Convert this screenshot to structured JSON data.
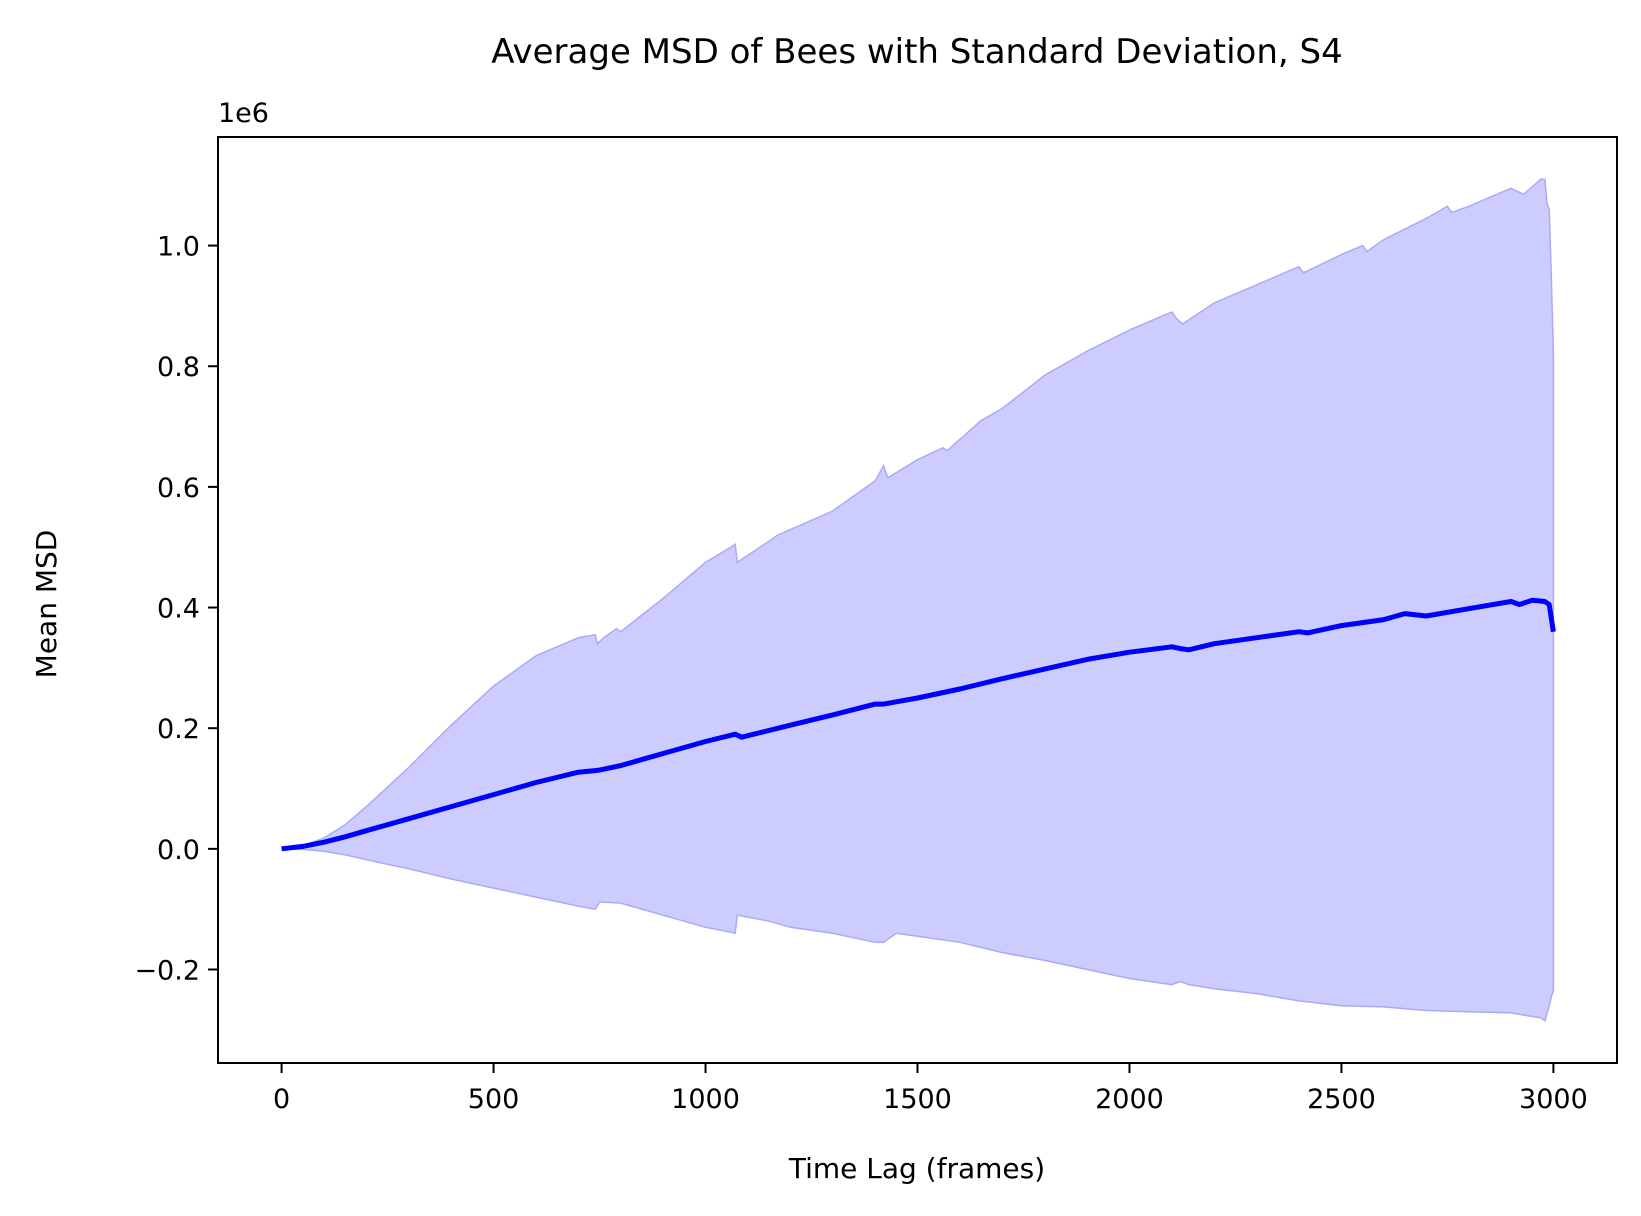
{
  "chart_data": {
    "type": "line",
    "title": "Average MSD of Bees with Standard Deviation, S4",
    "xlabel": "Time Lag (frames)",
    "ylabel": "Mean MSD",
    "y_offset_label": "1e6",
    "xlim": [
      -150,
      3150
    ],
    "ylim": [
      -0.355,
      1.18
    ],
    "x_ticks": [
      0,
      500,
      1000,
      1500,
      2000,
      2500,
      3000
    ],
    "x_tick_labels": [
      "0",
      "500",
      "1000",
      "1500",
      "2000",
      "2500",
      "3000"
    ],
    "y_ticks": [
      -0.2,
      0.0,
      0.2,
      0.4,
      0.6,
      0.8,
      1.0
    ],
    "y_tick_labels": [
      "−0.2",
      "0.0",
      "0.2",
      "0.4",
      "0.6",
      "0.8",
      "1.0"
    ],
    "grid": false,
    "legend": "none",
    "colors": {
      "mean_line": "#0000ff",
      "band_fill": "#ccccff",
      "band_edge": "#aaaaf5"
    },
    "series": [
      {
        "role": "mean",
        "x": [
          0,
          50,
          100,
          150,
          200,
          250,
          300,
          400,
          500,
          600,
          700,
          745,
          760,
          800,
          900,
          1000,
          1070,
          1085,
          1200,
          1300,
          1400,
          1420,
          1500,
          1600,
          1700,
          1800,
          1900,
          2000,
          2100,
          2120,
          2140,
          2200,
          2300,
          2400,
          2420,
          2500,
          2600,
          2650,
          2700,
          2800,
          2900,
          2920,
          2950,
          2980,
          2990,
          3000
        ],
        "y": [
          0.0,
          0.004,
          0.011,
          0.02,
          0.03,
          0.04,
          0.05,
          0.07,
          0.09,
          0.11,
          0.127,
          0.13,
          0.132,
          0.138,
          0.158,
          0.178,
          0.19,
          0.185,
          0.205,
          0.222,
          0.24,
          0.24,
          0.25,
          0.265,
          0.282,
          0.298,
          0.314,
          0.326,
          0.335,
          0.332,
          0.33,
          0.34,
          0.35,
          0.36,
          0.358,
          0.37,
          0.38,
          0.39,
          0.386,
          0.398,
          0.41,
          0.405,
          0.412,
          0.41,
          0.405,
          0.36
        ]
      },
      {
        "role": "mean_plus_std",
        "x": [
          0,
          50,
          100,
          150,
          200,
          300,
          400,
          500,
          600,
          700,
          740,
          745,
          760,
          790,
          800,
          900,
          1000,
          1060,
          1070,
          1075,
          1150,
          1170,
          1300,
          1400,
          1420,
          1430,
          1500,
          1560,
          1570,
          1650,
          1700,
          1800,
          1900,
          2000,
          2100,
          2110,
          2125,
          2200,
          2300,
          2400,
          2410,
          2420,
          2500,
          2550,
          2560,
          2600,
          2700,
          2750,
          2760,
          2800,
          2850,
          2900,
          2930,
          2970,
          2980,
          2985,
          2990,
          2995,
          3000
        ],
        "y": [
          0.0,
          0.005,
          0.018,
          0.04,
          0.07,
          0.135,
          0.205,
          0.27,
          0.32,
          0.35,
          0.355,
          0.34,
          0.35,
          0.365,
          0.36,
          0.415,
          0.475,
          0.5,
          0.505,
          0.475,
          0.51,
          0.52,
          0.56,
          0.61,
          0.635,
          0.615,
          0.645,
          0.665,
          0.66,
          0.71,
          0.73,
          0.785,
          0.825,
          0.86,
          0.89,
          0.88,
          0.87,
          0.905,
          0.935,
          0.965,
          0.955,
          0.958,
          0.985,
          1.0,
          0.99,
          1.01,
          1.045,
          1.065,
          1.055,
          1.065,
          1.08,
          1.095,
          1.085,
          1.11,
          1.11,
          1.07,
          1.06,
          0.95,
          0.82
        ]
      },
      {
        "role": "mean_minus_std",
        "x": [
          0,
          50,
          100,
          150,
          200,
          300,
          400,
          500,
          600,
          700,
          740,
          750,
          800,
          900,
          1000,
          1060,
          1070,
          1075,
          1150,
          1200,
          1300,
          1400,
          1420,
          1450,
          1500,
          1600,
          1700,
          1800,
          1900,
          2000,
          2100,
          2120,
          2140,
          2200,
          2300,
          2400,
          2500,
          2600,
          2700,
          2800,
          2900,
          2950,
          2970,
          2980,
          2990,
          2995,
          3000
        ],
        "y": [
          0.0,
          -0.001,
          -0.004,
          -0.01,
          -0.018,
          -0.033,
          -0.05,
          -0.065,
          -0.08,
          -0.095,
          -0.1,
          -0.088,
          -0.09,
          -0.11,
          -0.13,
          -0.138,
          -0.14,
          -0.11,
          -0.12,
          -0.13,
          -0.14,
          -0.155,
          -0.155,
          -0.14,
          -0.145,
          -0.155,
          -0.172,
          -0.185,
          -0.2,
          -0.215,
          -0.225,
          -0.22,
          -0.225,
          -0.232,
          -0.24,
          -0.252,
          -0.26,
          -0.262,
          -0.268,
          -0.27,
          -0.272,
          -0.278,
          -0.28,
          -0.285,
          -0.26,
          -0.245,
          -0.235
        ]
      }
    ]
  }
}
